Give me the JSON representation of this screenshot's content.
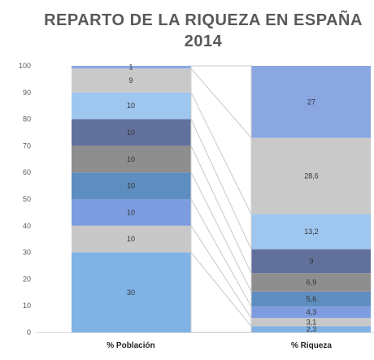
{
  "chart_data": {
    "type": "bar",
    "stacked": true,
    "title": [
      "REPARTO DE LA RIQUEZA EN ESPAÑA",
      "2014"
    ],
    "categories": [
      "% Población",
      "% Riqueza"
    ],
    "ylim": [
      0,
      100
    ],
    "yticks": [
      0,
      10,
      20,
      30,
      40,
      50,
      60,
      70,
      80,
      90,
      100
    ],
    "grid": false,
    "legend": "none",
    "series": [
      {
        "color": "#7FB2E5",
        "values": [
          30,
          2.3
        ],
        "labels": [
          "30",
          "2,3"
        ]
      },
      {
        "color": "#C8C8C8",
        "values": [
          10,
          3.1
        ],
        "labels": [
          "10",
          "3,1"
        ]
      },
      {
        "color": "#7E9DE0",
        "values": [
          10,
          4.3
        ],
        "labels": [
          "10",
          "4,3"
        ]
      },
      {
        "color": "#5E8DBF",
        "values": [
          10,
          5.6
        ],
        "labels": [
          "10",
          "5,6"
        ]
      },
      {
        "color": "#8E8E8E",
        "values": [
          10,
          6.9
        ],
        "labels": [
          "10",
          "6,9"
        ]
      },
      {
        "color": "#62719B",
        "values": [
          10,
          9
        ],
        "labels": [
          "10",
          "9"
        ]
      },
      {
        "color": "#9EC6EE",
        "values": [
          10,
          13.2
        ],
        "labels": [
          "10",
          "13,2"
        ]
      },
      {
        "color": "#C9C9C9",
        "values": [
          9,
          28.6
        ],
        "labels": [
          "9",
          "28,6"
        ]
      },
      {
        "color": "#8AA7E2",
        "values": [
          1,
          27
        ],
        "labels": [
          "1",
          "27"
        ]
      }
    ]
  }
}
